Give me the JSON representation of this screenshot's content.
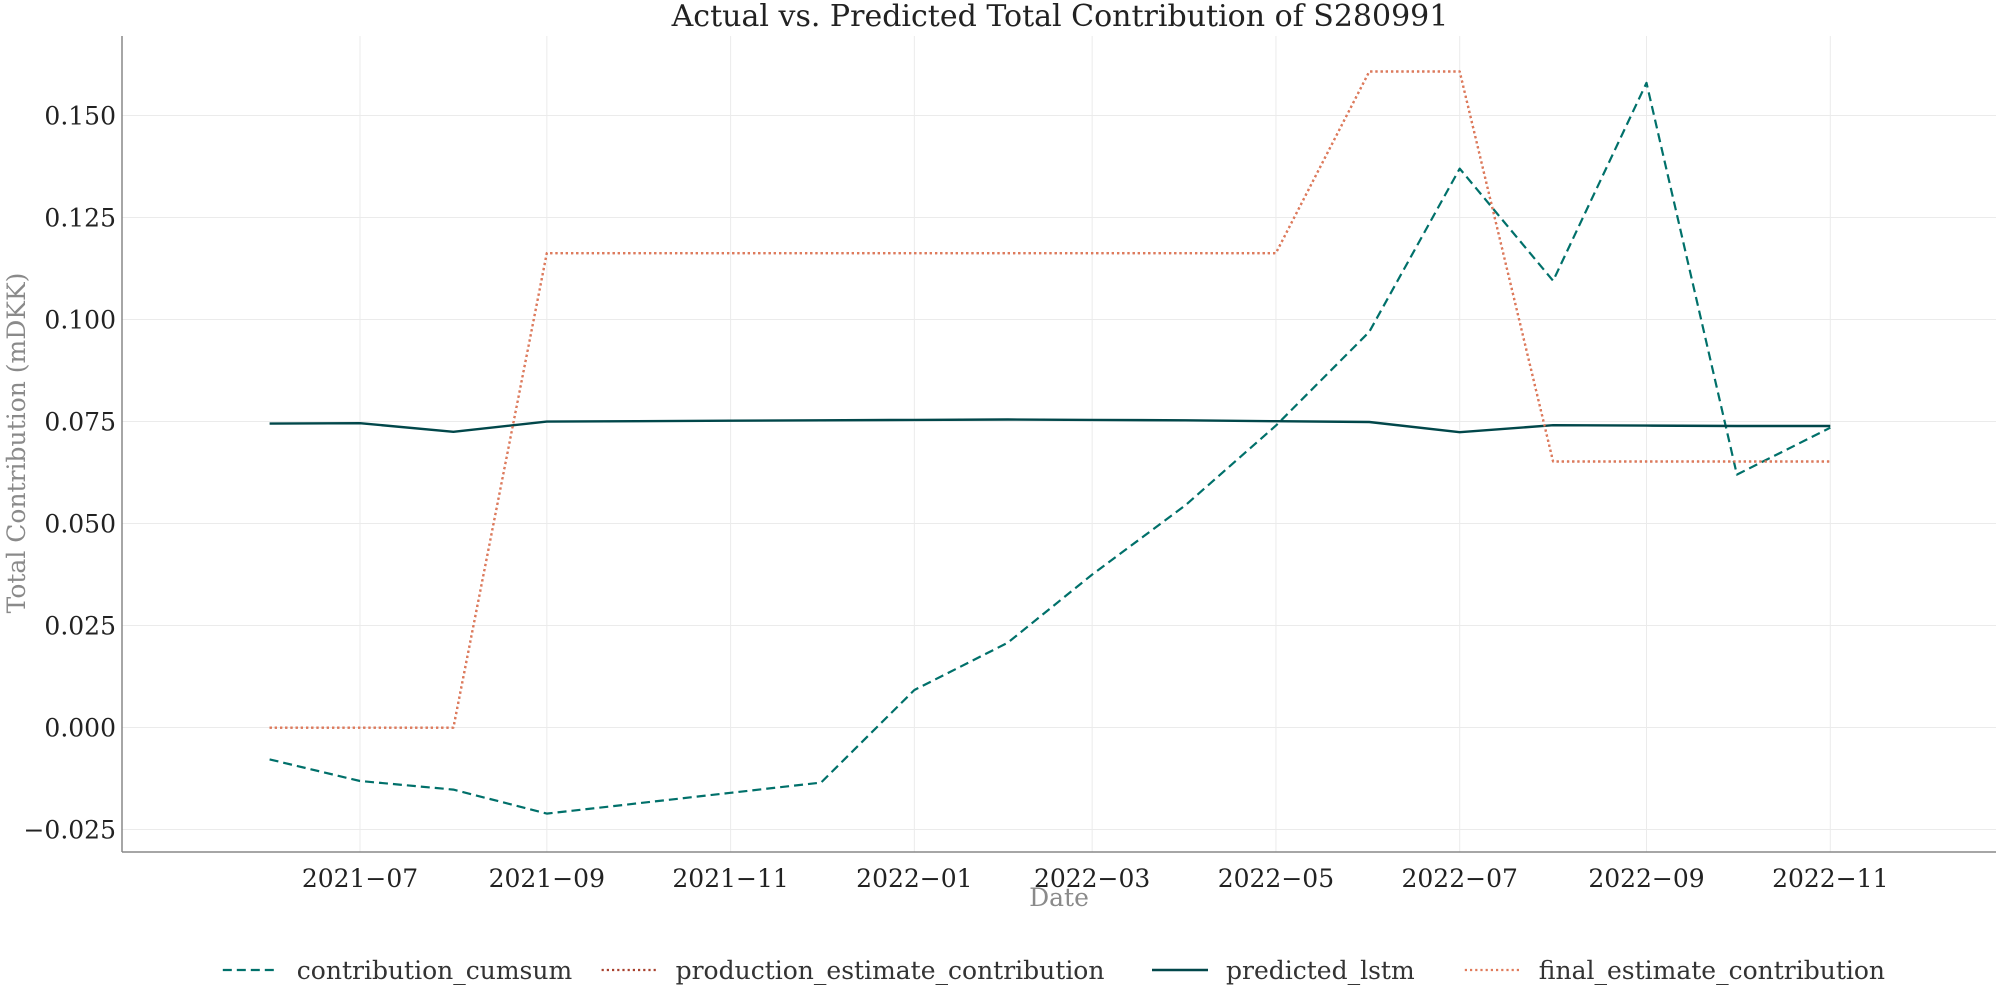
{
  "chart_data": {
    "type": "line",
    "title": "Actual vs. Predicted Total Contribution of S280991",
    "xlabel": "Date",
    "ylabel": "Total Contribution (mDKK)",
    "x": [
      "2021-06",
      "2021-07",
      "2021-08",
      "2021-09",
      "2021-10",
      "2021-11",
      "2021-12",
      "2022-01",
      "2022-02",
      "2022-03",
      "2022-04",
      "2022-05",
      "2022-06",
      "2022-07",
      "2022-08",
      "2022-09",
      "2022-10",
      "2022-11"
    ],
    "x_ticks": [
      "2021-07",
      "2021-09",
      "2021-11",
      "2022-01",
      "2022-03",
      "2022-05",
      "2022-07",
      "2022-09",
      "2022-11"
    ],
    "x_tick_labels": [
      "2021−07",
      "2021−09",
      "2021−11",
      "2022−01",
      "2022−03",
      "2022−05",
      "2022−07",
      "2022−09",
      "2022−11"
    ],
    "xlim": [
      "2021-04-13",
      "2022-12-26"
    ],
    "y_ticks": [
      -0.025,
      0.0,
      0.025,
      0.05,
      0.075,
      0.1,
      0.125,
      0.15
    ],
    "y_tick_labels": [
      "−0.025",
      "0.000",
      "0.025",
      "0.050",
      "0.075",
      "0.100",
      "0.125",
      "0.150"
    ],
    "ylim": [
      -0.0305,
      0.1695
    ],
    "grid": true,
    "legend_position": "bottom-center",
    "series": [
      {
        "name": "contribution_cumsum",
        "style": "dashed",
        "color": "#00706a",
        "values": [
          -0.0078,
          -0.0131,
          -0.0152,
          -0.0211,
          -0.0186,
          -0.016,
          -0.0135,
          0.0092,
          0.0208,
          0.0375,
          0.0545,
          0.074,
          0.097,
          0.137,
          0.1095,
          0.158,
          0.062,
          0.0735
        ]
      },
      {
        "name": "production_estimate_contribution",
        "style": "dotted",
        "color": "#a8412e",
        "values": [
          0.0,
          0.0,
          0.0,
          0.1163,
          0.1163,
          0.1163,
          0.1163,
          0.1163,
          0.1163,
          0.1163,
          0.1163,
          0.1163,
          0.1608,
          0.1608,
          0.0652,
          0.0652,
          0.0652,
          0.0652
        ]
      },
      {
        "name": "predicted_lstm",
        "style": "solid",
        "color": "#01474a",
        "values": [
          0.0745,
          0.0746,
          0.0725,
          0.075,
          0.0751,
          0.0752,
          0.0753,
          0.0754,
          0.0755,
          0.0754,
          0.0753,
          0.0751,
          0.0749,
          0.0724,
          0.0741,
          0.074,
          0.0739,
          0.0739
        ]
      },
      {
        "name": "final_estimate_contribution",
        "style": "dotted",
        "color": "#e07a5a",
        "values": [
          0.0,
          0.0,
          0.0,
          0.1163,
          0.1163,
          0.1163,
          0.1163,
          0.1163,
          0.1163,
          0.1163,
          0.1163,
          0.1163,
          0.1608,
          0.1608,
          0.0652,
          0.0652,
          0.0652,
          0.0652
        ]
      }
    ]
  }
}
